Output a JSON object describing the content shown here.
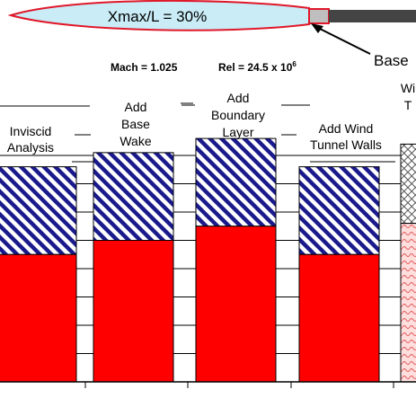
{
  "header": {
    "airfoil_label": "Xmax/L = 30%",
    "callout_label": "Base",
    "mach": "Mach = 1.025",
    "rel_prefix": "Rel = 24.5 x 10",
    "rel_exponent": "6"
  },
  "colors": {
    "solid": "#ff0000",
    "hatch": "#1a1a8c",
    "airfoil_fill": "#c9ecf6",
    "airfoil_stroke": "#e0182a",
    "sting": "#444444",
    "base": "#bfbfbf"
  },
  "chart_data": {
    "type": "bar",
    "stacked": true,
    "categories": [
      [
        "Inviscid",
        "Analysis"
      ],
      [
        "Add",
        "Base",
        "Wake"
      ],
      [
        "Add",
        "Boundary",
        "Layer"
      ],
      [
        "Add Wind",
        "Tunnel Walls"
      ],
      [
        "Wi",
        "T"
      ]
    ],
    "series": [
      {
        "fill": "solid",
        "values": [
          4.5,
          5.0,
          5.5,
          4.5,
          5.6
        ]
      },
      {
        "fill": "diagonal-hatch",
        "values": [
          3.1,
          3.1,
          3.1,
          3.1,
          2.8
        ]
      }
    ],
    "grid": true,
    "ylim": [
      0,
      10
    ]
  }
}
